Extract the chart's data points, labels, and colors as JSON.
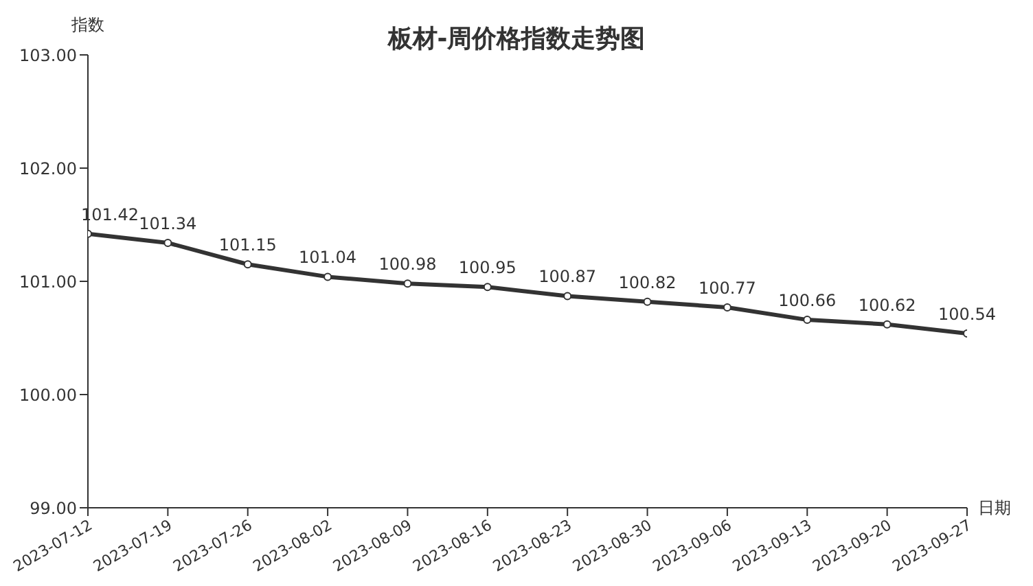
{
  "chart_data": {
    "type": "line",
    "title": "板材-周价格指数走势图",
    "xlabel": "日期",
    "ylabel": "指数",
    "categories": [
      "2023-07-12",
      "2023-07-19",
      "2023-07-26",
      "2023-08-02",
      "2023-08-09",
      "2023-08-16",
      "2023-08-23",
      "2023-08-30",
      "2023-09-06",
      "2023-09-13",
      "2023-09-20",
      "2023-09-27"
    ],
    "series": [
      {
        "color": "#333333",
        "values": [
          101.42,
          101.34,
          101.15,
          101.04,
          100.98,
          100.95,
          100.87,
          100.82,
          100.77,
          100.66,
          100.62,
          100.54
        ]
      }
    ],
    "ylim": [
      99,
      103
    ],
    "yticks": [
      {
        "value": 99,
        "label": "99.00"
      },
      {
        "value": 100,
        "label": "100.00"
      },
      {
        "value": 101,
        "label": "101.00"
      },
      {
        "value": 102,
        "label": "102.00"
      },
      {
        "value": 103,
        "label": "103.00"
      }
    ],
    "grid": false,
    "legend": false,
    "marker": "circle",
    "line_style": "solid",
    "data_labels": true
  }
}
